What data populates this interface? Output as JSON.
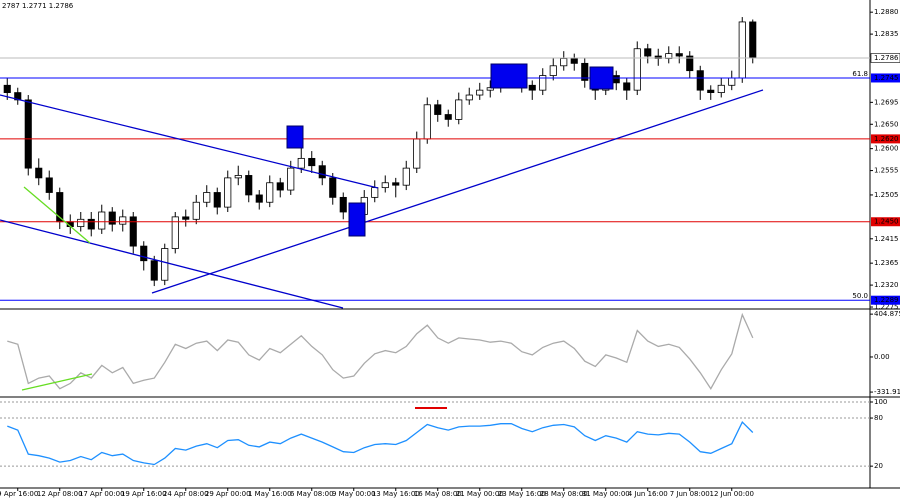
{
  "chart_data": [
    {
      "type": "candlestick",
      "title": "2787 1.2771 1.2786",
      "categories": [
        null,
        "9 Apr 16:00",
        null,
        null,
        null,
        "12 Apr 08:00",
        null,
        null,
        null,
        "17 Apr 00:00",
        null,
        null,
        null,
        "19 Apr 16:00",
        null,
        null,
        null,
        "24 Apr 08:00",
        null,
        null,
        null,
        "29 Apr 00:00",
        null,
        null,
        null,
        "1 May 16:00",
        null,
        null,
        null,
        "6 May 08:00",
        null,
        null,
        null,
        "9 May 00:00",
        null,
        null,
        null,
        "13 May 16:00",
        null,
        null,
        null,
        "16 May 08:00",
        null,
        null,
        null,
        "21 May 00:00",
        null,
        null,
        null,
        "23 May 16:00",
        null,
        null,
        null,
        "28 May 08:00",
        null,
        null,
        null,
        "31 May 00:00",
        null,
        null,
        null,
        "4 Jun 16:00",
        null,
        null,
        null,
        "7 Jun 08:00",
        null,
        null,
        null,
        "12 Jun 00:00",
        null,
        null
      ],
      "open": [
        1.273,
        1.2715,
        1.27,
        1.256,
        1.254,
        1.251,
        1.245,
        1.244,
        1.2455,
        1.2435,
        1.247,
        1.2445,
        1.246,
        1.24,
        1.237,
        1.233,
        1.2395,
        1.246,
        1.2455,
        1.249,
        1.251,
        1.248,
        1.254,
        1.2545,
        1.2505,
        1.249,
        1.253,
        1.2515,
        1.256,
        1.258,
        1.2565,
        1.254,
        1.25,
        1.247,
        1.2465,
        1.25,
        1.252,
        1.253,
        1.2525,
        1.256,
        1.262,
        1.269,
        1.267,
        1.266,
        1.27,
        1.271,
        1.272,
        1.2725,
        1.274,
        1.2745,
        1.273,
        1.272,
        1.275,
        1.277,
        1.2785,
        1.2775,
        1.274,
        1.272,
        1.275,
        1.2735,
        1.272,
        1.2805,
        1.279,
        1.2785,
        1.2795,
        1.279,
        1.276,
        1.272,
        1.2715,
        1.273,
        1.2745,
        1.286
      ],
      "high": [
        1.2745,
        1.2725,
        1.271,
        1.258,
        1.2555,
        1.252,
        1.2465,
        1.247,
        1.247,
        1.2485,
        1.248,
        1.2475,
        1.247,
        1.241,
        1.238,
        1.2405,
        1.247,
        1.2475,
        1.2505,
        1.2525,
        1.252,
        1.2555,
        1.2565,
        1.2555,
        1.2515,
        1.2545,
        1.254,
        1.2575,
        1.2625,
        1.2595,
        1.2575,
        1.255,
        1.251,
        1.2485,
        1.2515,
        1.2535,
        1.2545,
        1.254,
        1.2575,
        1.2635,
        1.2705,
        1.27,
        1.268,
        1.2715,
        1.2725,
        1.2735,
        1.274,
        1.2755,
        1.276,
        1.2755,
        1.274,
        1.2765,
        1.2785,
        1.28,
        1.2795,
        1.2785,
        1.275,
        1.2765,
        1.276,
        1.2745,
        1.282,
        1.2815,
        1.2805,
        1.281,
        1.281,
        1.28,
        1.277,
        1.273,
        1.2745,
        1.276,
        1.287,
        1.2865
      ],
      "low": [
        1.27,
        1.269,
        1.2545,
        1.2525,
        1.2495,
        1.2435,
        1.2425,
        1.243,
        1.242,
        1.2425,
        1.243,
        1.243,
        1.2385,
        1.235,
        1.2318,
        1.232,
        1.2385,
        1.244,
        1.2445,
        1.248,
        1.2465,
        1.247,
        1.2525,
        1.249,
        1.2475,
        1.248,
        1.25,
        1.2505,
        1.255,
        1.255,
        1.2525,
        1.2485,
        1.2455,
        1.245,
        1.2455,
        1.249,
        1.251,
        1.25,
        1.2515,
        1.255,
        1.261,
        1.2655,
        1.2645,
        1.265,
        1.269,
        1.27,
        1.2705,
        1.2715,
        1.2725,
        1.2715,
        1.27,
        1.271,
        1.274,
        1.276,
        1.276,
        1.2725,
        1.27,
        1.271,
        1.272,
        1.27,
        1.271,
        1.2775,
        1.277,
        1.2775,
        1.2775,
        1.2745,
        1.27,
        1.27,
        1.2705,
        1.272,
        1.2735,
        1.2775
      ],
      "close": [
        1.2715,
        1.27,
        1.256,
        1.254,
        1.251,
        1.245,
        1.244,
        1.2455,
        1.2435,
        1.247,
        1.2445,
        1.246,
        1.24,
        1.237,
        1.233,
        1.2395,
        1.246,
        1.2455,
        1.249,
        1.251,
        1.248,
        1.254,
        1.2545,
        1.2505,
        1.249,
        1.253,
        1.2515,
        1.256,
        1.258,
        1.2565,
        1.254,
        1.25,
        1.247,
        1.2465,
        1.25,
        1.252,
        1.253,
        1.2525,
        1.256,
        1.262,
        1.269,
        1.267,
        1.266,
        1.27,
        1.271,
        1.272,
        1.2725,
        1.274,
        1.2745,
        1.273,
        1.272,
        1.275,
        1.277,
        1.2785,
        1.2775,
        1.274,
        1.272,
        1.275,
        1.2735,
        1.272,
        1.2805,
        1.279,
        1.2785,
        1.2795,
        1.279,
        1.276,
        1.272,
        1.2715,
        1.273,
        1.2745,
        1.286,
        1.2786
      ],
      "ylim": [
        1.2273,
        1.2905
      ],
      "yticks": [
        {
          "value": 1.288,
          "label": "1.2880"
        },
        1.2835,
        1.2695,
        {
          "value": 1.265,
          "label": "1.2650"
        },
        {
          "value": 1.26,
          "label": "1.2600"
        },
        1.2555,
        1.2505,
        1.2415,
        1.2365,
        {
          "value": 1.232,
          "label": "1.2320"
        },
        1.2275
      ],
      "last": 1.2786,
      "levels": [
        {
          "value": 1.2745,
          "label": "1.2745",
          "color": "#0000ff",
          "note": "61.8"
        },
        {
          "value": 1.262,
          "label": "1.2620",
          "color": "#e00000"
        },
        {
          "value": 1.245,
          "label": "1.2450",
          "color": "#e00000"
        },
        {
          "value": 1.2289,
          "label": "1.2289",
          "color": "#0000ff",
          "note": "50.0"
        }
      ]
    },
    {
      "type": "line",
      "color": "#aaaaaa",
      "values": [
        150,
        120,
        -250,
        -200,
        -180,
        -300,
        -250,
        -150,
        -200,
        -80,
        -150,
        -100,
        -250,
        -220,
        -200,
        -50,
        120,
        80,
        130,
        150,
        60,
        160,
        140,
        20,
        -30,
        80,
        40,
        120,
        200,
        100,
        20,
        -120,
        -200,
        -180,
        -60,
        30,
        60,
        40,
        100,
        220,
        300,
        180,
        130,
        180,
        170,
        160,
        140,
        150,
        130,
        50,
        20,
        90,
        130,
        150,
        80,
        -40,
        -90,
        20,
        -10,
        -50,
        250,
        150,
        100,
        120,
        90,
        -20,
        -150,
        -300,
        -120,
        30,
        400,
        180
      ],
      "ylim": [
        -369,
        444
      ],
      "yticks": [
        404.8759,
        {
          "value": 0,
          "label": "0.00"
        },
        -331.916
      ],
      "grid": false
    },
    {
      "type": "line",
      "color": "#1e90ff",
      "values": [
        70,
        65,
        35,
        33,
        30,
        25,
        27,
        32,
        28,
        37,
        33,
        35,
        27,
        24,
        22,
        30,
        42,
        40,
        45,
        48,
        43,
        52,
        53,
        46,
        44,
        50,
        48,
        55,
        60,
        55,
        50,
        44,
        38,
        37,
        43,
        47,
        48,
        47,
        52,
        62,
        72,
        68,
        65,
        69,
        70,
        70,
        71,
        73,
        73,
        67,
        63,
        68,
        71,
        72,
        69,
        58,
        52,
        58,
        55,
        50,
        63,
        60,
        59,
        61,
        60,
        50,
        38,
        36,
        42,
        48,
        75,
        62
      ],
      "ylim": [
        -6,
        105
      ],
      "yticks": [
        100,
        80,
        20
      ],
      "grid": true
    }
  ]
}
